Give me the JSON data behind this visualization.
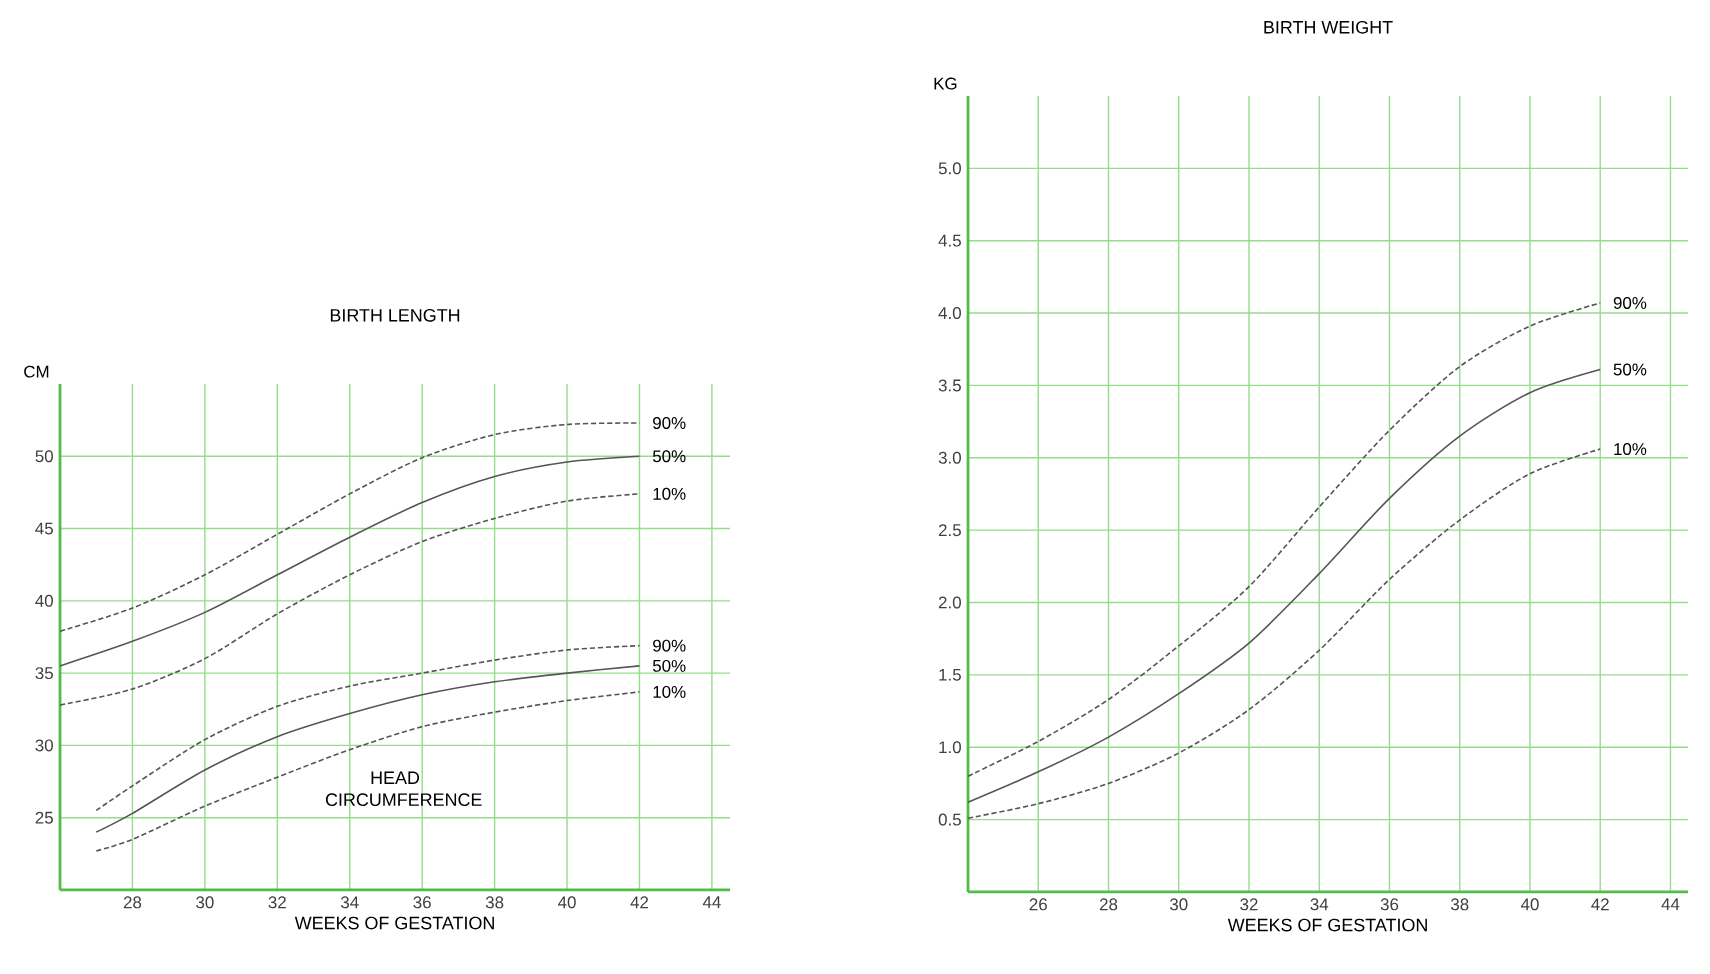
{
  "chart_data": [
    {
      "type": "line",
      "title": "BIRTH LENGTH",
      "xlabel": "WEEKS OF GESTATION",
      "ylabel": "CM",
      "xlim": [
        26,
        44.5
      ],
      "ylim": [
        20,
        55
      ],
      "xticks": [
        28,
        30,
        32,
        34,
        36,
        38,
        40,
        42,
        44
      ],
      "yticks": [
        25,
        30,
        35,
        40,
        45,
        50
      ],
      "grid": true,
      "marker": "none",
      "annotations": [
        "HEAD CIRCUMFERENCE"
      ],
      "series": [
        {
          "name": "90%",
          "color": "#555555",
          "line_style": "dashed",
          "x": [
            26,
            28,
            30,
            32,
            34,
            36,
            38,
            40,
            42
          ],
          "values": [
            37.9,
            39.5,
            41.8,
            44.6,
            47.4,
            49.9,
            51.5,
            52.2,
            52.3
          ]
        },
        {
          "name": "50%",
          "color": "#555555",
          "line_style": "solid",
          "x": [
            26,
            28,
            30,
            32,
            34,
            36,
            38,
            40,
            42
          ],
          "values": [
            35.5,
            37.2,
            39.2,
            41.8,
            44.4,
            46.8,
            48.6,
            49.6,
            50.0
          ]
        },
        {
          "name": "10%",
          "color": "#555555",
          "line_style": "dashed",
          "x": [
            26,
            28,
            30,
            32,
            34,
            36,
            38,
            40,
            42
          ],
          "values": [
            32.8,
            33.9,
            36.0,
            39.1,
            41.8,
            44.1,
            45.7,
            46.9,
            47.4
          ]
        },
        {
          "name": "90%",
          "color": "#555555",
          "line_style": "dashed",
          "x": [
            27,
            28,
            30,
            32,
            34,
            36,
            38,
            40,
            42
          ],
          "values": [
            25.5,
            27.2,
            30.4,
            32.7,
            34.1,
            35.0,
            35.9,
            36.6,
            36.9
          ]
        },
        {
          "name": "50%",
          "color": "#555555",
          "line_style": "solid",
          "x": [
            27,
            28,
            30,
            32,
            34,
            36,
            38,
            40,
            42
          ],
          "values": [
            24.0,
            25.3,
            28.3,
            30.6,
            32.2,
            33.5,
            34.4,
            35.0,
            35.5
          ]
        },
        {
          "name": "10%",
          "color": "#555555",
          "line_style": "dashed",
          "x": [
            27,
            28,
            30,
            32,
            34,
            36,
            38,
            40,
            42
          ],
          "values": [
            22.7,
            23.5,
            25.8,
            27.8,
            29.7,
            31.3,
            32.3,
            33.1,
            33.7
          ]
        }
      ]
    },
    {
      "type": "line",
      "title": "BIRTH WEIGHT",
      "xlabel": "WEEKS OF GESTATION",
      "ylabel": "KG",
      "xlim": [
        24,
        44.5
      ],
      "ylim": [
        0,
        5.5
      ],
      "xticks": [
        26,
        28,
        30,
        32,
        34,
        36,
        38,
        40,
        42,
        44
      ],
      "yticks": [
        0.5,
        {
          "value": 1,
          "label": "1.0"
        },
        1.5,
        {
          "value": 2,
          "label": "2.0"
        },
        2.5,
        {
          "value": 3,
          "label": "3.0"
        },
        3.5,
        {
          "value": 4,
          "label": "4.0"
        },
        4.5,
        {
          "value": 5,
          "label": "5.0"
        }
      ],
      "grid": true,
      "marker": "none",
      "series": [
        {
          "name": "90%",
          "color": "#555555",
          "line_style": "dashed",
          "x": [
            24,
            26,
            28,
            30,
            32,
            34,
            36,
            38,
            40,
            42
          ],
          "values": [
            0.8,
            1.04,
            1.33,
            1.7,
            2.11,
            2.66,
            3.19,
            3.63,
            3.91,
            4.07
          ]
        },
        {
          "name": "50%",
          "color": "#555555",
          "line_style": "solid",
          "x": [
            24,
            26,
            28,
            30,
            32,
            34,
            36,
            38,
            40,
            42
          ],
          "values": [
            0.62,
            0.83,
            1.07,
            1.37,
            1.72,
            2.2,
            2.72,
            3.15,
            3.45,
            3.61
          ]
        },
        {
          "name": "10%",
          "color": "#555555",
          "line_style": "dashed",
          "x": [
            24,
            26,
            28,
            30,
            32,
            34,
            36,
            38,
            40,
            42
          ],
          "values": [
            0.51,
            0.61,
            0.75,
            0.96,
            1.26,
            1.67,
            2.16,
            2.57,
            2.89,
            3.06
          ]
        }
      ]
    }
  ]
}
